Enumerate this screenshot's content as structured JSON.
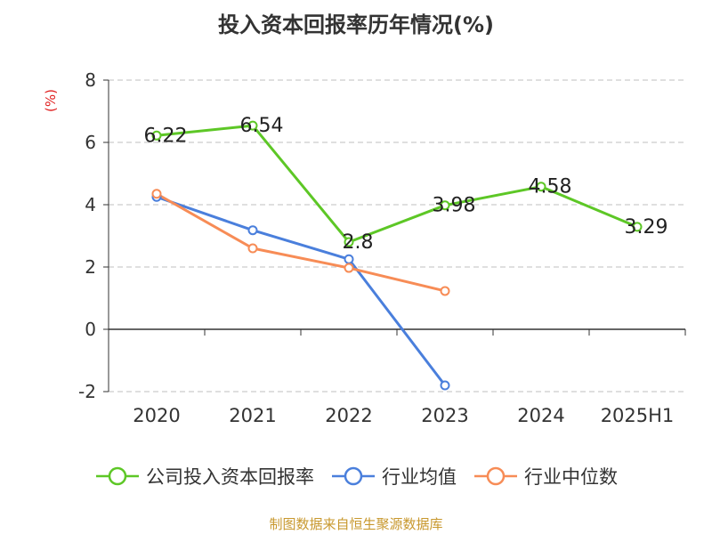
{
  "title": "投入资本回报率历年情况(%)",
  "unit": "(%)",
  "source": "制图数据来自恒生聚源数据库",
  "chart_data": {
    "type": "line",
    "categories": [
      "2020",
      "2021",
      "2022",
      "2023",
      "2024",
      "2025H1"
    ],
    "ylim": [
      -2,
      8
    ],
    "yticks": [
      -2,
      0,
      2,
      4,
      6,
      8
    ],
    "grid": true,
    "legend": "bottom",
    "series": [
      {
        "name": "公司投入资本回报率",
        "color": "#5dc726",
        "values": [
          6.22,
          6.54,
          2.8,
          3.98,
          4.58,
          3.29
        ],
        "labels": [
          "6.22",
          "6.54",
          "2.8",
          "3.98",
          "4.58",
          "3.29"
        ]
      },
      {
        "name": "行业均值",
        "color": "#4a7fdc",
        "values": [
          4.25,
          3.18,
          2.25,
          -1.8,
          null,
          null
        ]
      },
      {
        "name": "行业中位数",
        "color": "#f78c56",
        "values": [
          4.35,
          2.6,
          1.97,
          1.23,
          null,
          null
        ]
      }
    ]
  }
}
